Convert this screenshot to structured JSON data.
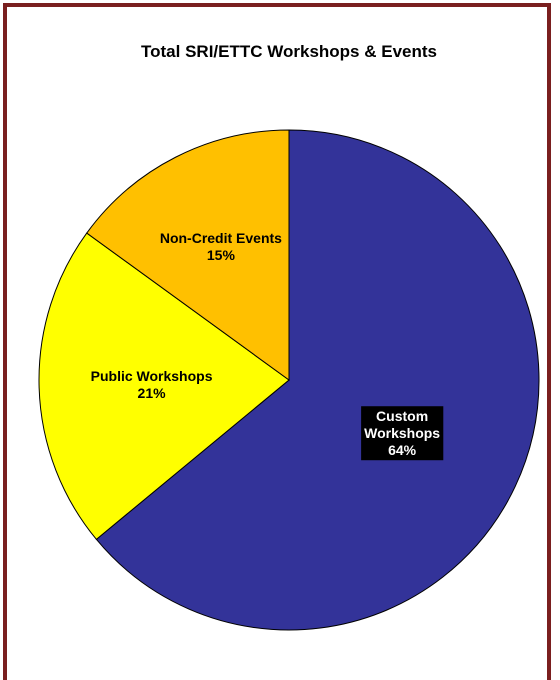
{
  "chart_data": {
    "type": "pie",
    "title": "Total SRI/ETTC Workshops & Events",
    "slices": [
      {
        "label_lines": [
          "Custom",
          "Workshops"
        ],
        "percent_label": "64%",
        "value": 64,
        "color": "#333399",
        "label_bg": "#000000",
        "label_color": "#ffffff"
      },
      {
        "label_lines": [
          "Public Workshops"
        ],
        "percent_label": "21%",
        "value": 21,
        "color": "#ffff00",
        "label_bg": "",
        "label_color": "#000000"
      },
      {
        "label_lines": [
          "Non-Credit Events"
        ],
        "percent_label": "15%",
        "value": 15,
        "color": "#ffc000",
        "label_bg": "",
        "label_color": "#000000"
      }
    ]
  }
}
